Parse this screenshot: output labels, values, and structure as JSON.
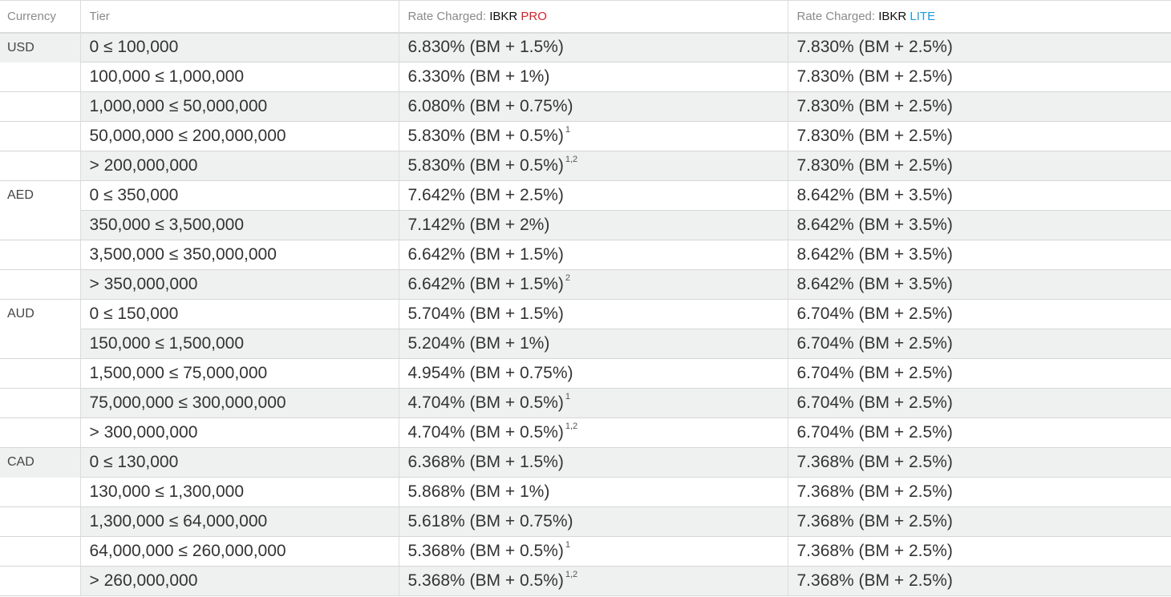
{
  "header": {
    "currency": "Currency",
    "tier": "Tier",
    "pro_prefix": "Rate Charged:",
    "pro_brand": "IBKR",
    "pro_tier": "PRO",
    "lite_prefix": "Rate Charged:",
    "lite_brand": "IBKR",
    "lite_tier": "LITE"
  },
  "colors": {
    "pro": "#d81f26",
    "lite": "#1e9be0",
    "row_shade": "#eff0f0"
  },
  "rows": [
    {
      "currency": "USD",
      "tier": "0 ≤ 100,000",
      "pro": "6.830% (BM + 1.5%)",
      "pro_fn": "",
      "lite": "7.830% (BM + 2.5%)"
    },
    {
      "currency": "",
      "tier": "100,000 ≤ 1,000,000",
      "pro": "6.330% (BM + 1%)",
      "pro_fn": "",
      "lite": "7.830% (BM + 2.5%)"
    },
    {
      "currency": "",
      "tier": "1,000,000 ≤ 50,000,000",
      "pro": "6.080% (BM + 0.75%)",
      "pro_fn": "",
      "lite": "7.830% (BM + 2.5%)"
    },
    {
      "currency": "",
      "tier": "50,000,000 ≤ 200,000,000",
      "pro": "5.830% (BM + 0.5%)",
      "pro_fn": "1",
      "lite": "7.830% (BM + 2.5%)"
    },
    {
      "currency": "",
      "tier": "> 200,000,000",
      "pro": "5.830% (BM + 0.5%)",
      "pro_fn": "1,2",
      "lite": "7.830% (BM + 2.5%)"
    },
    {
      "currency": "AED",
      "tier": "0 ≤ 350,000",
      "pro": "7.642% (BM + 2.5%)",
      "pro_fn": "",
      "lite": "8.642% (BM + 3.5%)"
    },
    {
      "currency": "",
      "tier": "350,000 ≤ 3,500,000",
      "pro": "7.142% (BM + 2%)",
      "pro_fn": "",
      "lite": "8.642% (BM + 3.5%)"
    },
    {
      "currency": "",
      "tier": "3,500,000 ≤ 350,000,000",
      "pro": "6.642% (BM + 1.5%)",
      "pro_fn": "",
      "lite": "8.642% (BM + 3.5%)"
    },
    {
      "currency": "",
      "tier": "> 350,000,000",
      "pro": "6.642% (BM + 1.5%)",
      "pro_fn": "2",
      "lite": "8.642% (BM + 3.5%)"
    },
    {
      "currency": "AUD",
      "tier": "0 ≤ 150,000",
      "pro": "5.704% (BM + 1.5%)",
      "pro_fn": "",
      "lite": "6.704% (BM + 2.5%)"
    },
    {
      "currency": "",
      "tier": "150,000 ≤ 1,500,000",
      "pro": "5.204% (BM + 1%)",
      "pro_fn": "",
      "lite": "6.704% (BM + 2.5%)"
    },
    {
      "currency": "",
      "tier": "1,500,000 ≤ 75,000,000",
      "pro": "4.954% (BM + 0.75%)",
      "pro_fn": "",
      "lite": "6.704% (BM + 2.5%)"
    },
    {
      "currency": "",
      "tier": "75,000,000 ≤ 300,000,000",
      "pro": "4.704% (BM + 0.5%)",
      "pro_fn": "1",
      "lite": "6.704% (BM + 2.5%)"
    },
    {
      "currency": "",
      "tier": "> 300,000,000",
      "pro": "4.704% (BM + 0.5%)",
      "pro_fn": "1,2",
      "lite": "6.704% (BM + 2.5%)"
    },
    {
      "currency": "CAD",
      "tier": "0 ≤ 130,000",
      "pro": "6.368% (BM + 1.5%)",
      "pro_fn": "",
      "lite": "7.368% (BM + 2.5%)"
    },
    {
      "currency": "",
      "tier": "130,000 ≤ 1,300,000",
      "pro": "5.868% (BM + 1%)",
      "pro_fn": "",
      "lite": "7.368% (BM + 2.5%)"
    },
    {
      "currency": "",
      "tier": "1,300,000 ≤ 64,000,000",
      "pro": "5.618% (BM + 0.75%)",
      "pro_fn": "",
      "lite": "7.368% (BM + 2.5%)"
    },
    {
      "currency": "",
      "tier": "64,000,000 ≤ 260,000,000",
      "pro": "5.368% (BM + 0.5%)",
      "pro_fn": "1",
      "lite": "7.368% (BM + 2.5%)"
    },
    {
      "currency": "",
      "tier": "> 260,000,000",
      "pro": "5.368% (BM + 0.5%)",
      "pro_fn": "1,2",
      "lite": "7.368% (BM + 2.5%)"
    }
  ]
}
